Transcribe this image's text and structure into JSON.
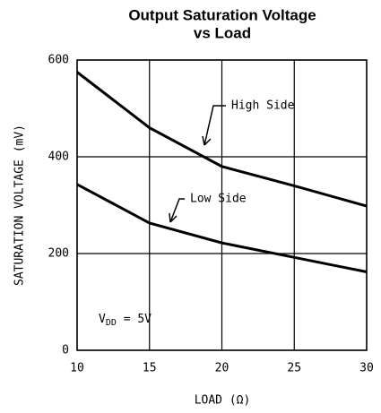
{
  "chart_data": {
    "type": "line",
    "title": [
      "Output Saturation Voltage",
      "vs Load"
    ],
    "x_label": "LOAD (Ω)",
    "y_label": "SATURATION VOLTAGE (mV)",
    "x": [
      10,
      15,
      20,
      25,
      30
    ],
    "series": [
      {
        "name": "High Side",
        "color": "#000000",
        "values": [
          575,
          460,
          380,
          340,
          298
        ]
      },
      {
        "name": "Low Side",
        "color": "#000000",
        "values": [
          343,
          263,
          222,
          192,
          162
        ]
      }
    ],
    "xlim": [
      10,
      30
    ],
    "xticks": [
      10,
      15,
      20,
      25,
      30
    ],
    "ylim": [
      0,
      600
    ],
    "yticks": [
      0,
      200,
      400,
      600
    ],
    "grid": true,
    "annotation": {
      "text": "V",
      "subscript": "DD",
      "suffix": " = 5V"
    }
  }
}
